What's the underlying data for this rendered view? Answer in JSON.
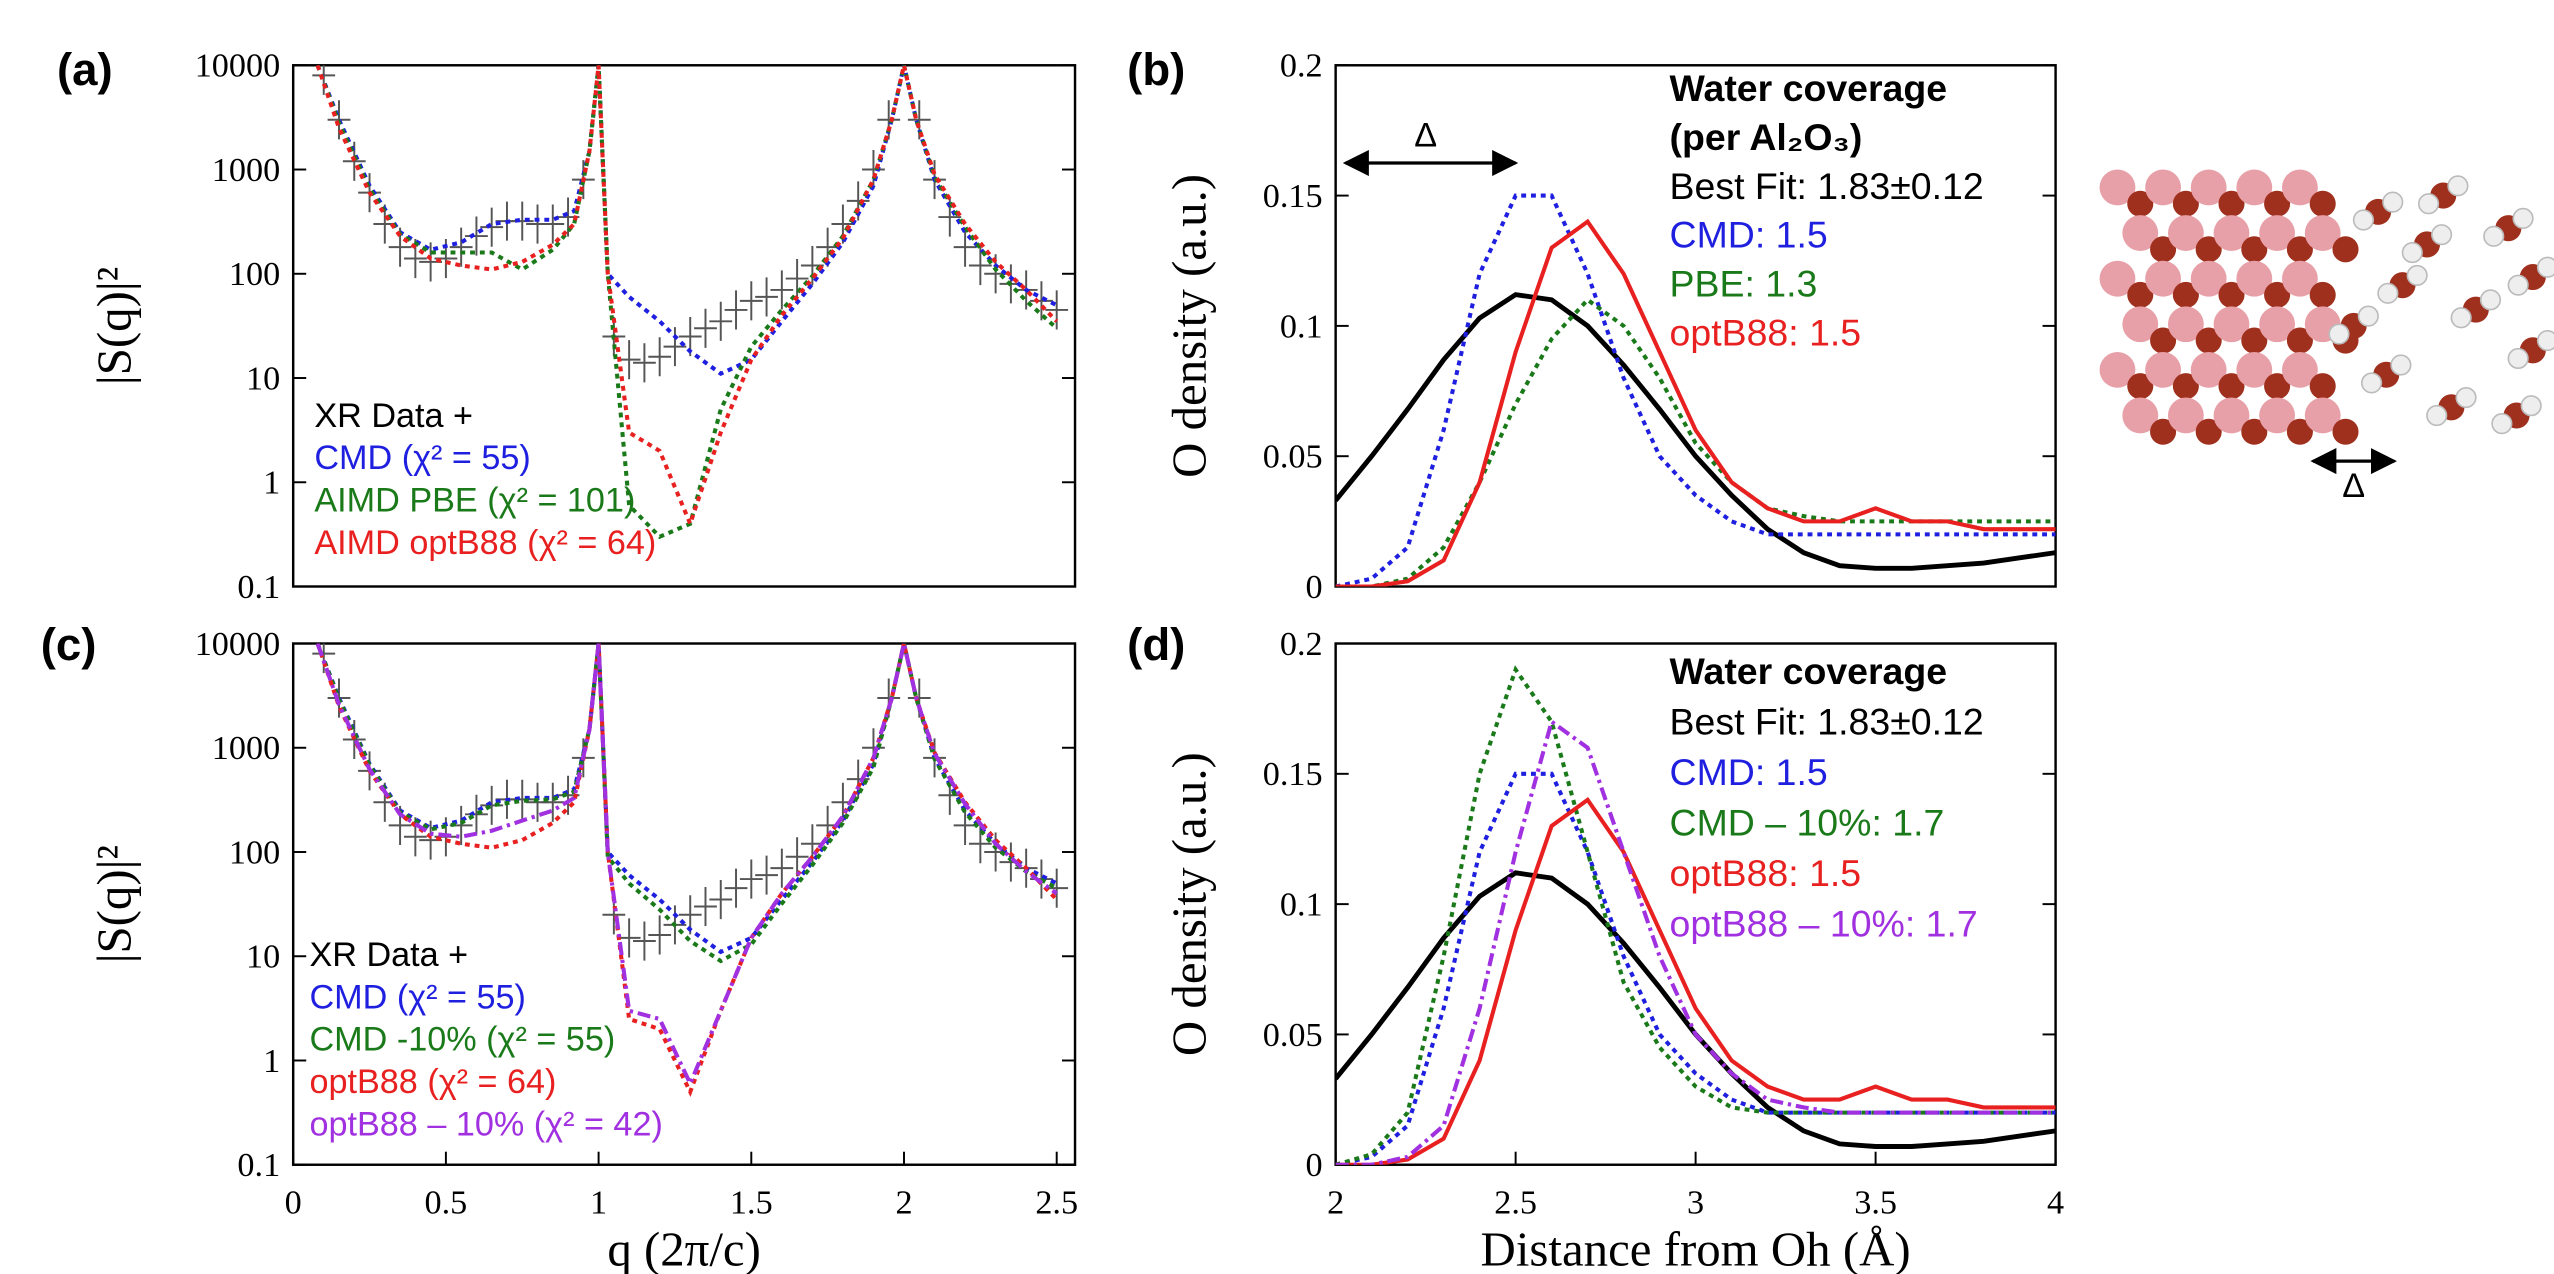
{
  "chart_data": [
    {
      "type": "line",
      "label": "(a)",
      "y_label": "|S(q)|²",
      "yscale": "log",
      "xlim": [
        0,
        2.56
      ],
      "ylim": [
        0.1,
        10000
      ],
      "yticks": [
        0.1,
        1,
        10,
        100,
        1000,
        10000
      ],
      "legend_title": [],
      "x": [
        0.08,
        0.15,
        0.25,
        0.35,
        0.45,
        0.55,
        0.65,
        0.75,
        0.85,
        0.92,
        0.97,
        1.0,
        1.03,
        1.1,
        1.2,
        1.3,
        1.4,
        1.5,
        1.6,
        1.7,
        1.8,
        1.9,
        1.96,
        2.0,
        2.04,
        2.1,
        2.2,
        2.3,
        2.4,
        2.5
      ],
      "series": [
        {
          "name": "XR Data +",
          "color": "#000000",
          "marker": "+",
          "x": [
            0.1,
            0.15,
            0.2,
            0.25,
            0.3,
            0.35,
            0.4,
            0.45,
            0.5,
            0.55,
            0.6,
            0.65,
            0.7,
            0.75,
            0.8,
            0.85,
            0.9,
            0.95,
            1.05,
            1.1,
            1.15,
            1.2,
            1.25,
            1.3,
            1.35,
            1.4,
            1.45,
            1.5,
            1.55,
            1.6,
            1.65,
            1.7,
            1.75,
            1.8,
            1.85,
            1.9,
            1.95,
            2.05,
            2.1,
            2.15,
            2.2,
            2.25,
            2.3,
            2.35,
            2.4,
            2.45,
            2.5
          ],
          "values": [
            8000,
            3000,
            1200,
            600,
            300,
            180,
            140,
            130,
            140,
            180,
            230,
            280,
            320,
            320,
            300,
            300,
            350,
            800,
            25,
            15,
            14,
            16,
            20,
            25,
            30,
            35,
            45,
            55,
            60,
            70,
            90,
            120,
            180,
            300,
            500,
            1000,
            3000,
            3000,
            800,
            350,
            180,
            120,
            100,
            80,
            70,
            55,
            45
          ]
        },
        {
          "name": "CMD (χ² = 55)",
          "color": "#1f1fe0",
          "style": "dotted",
          "values": [
            10000,
            3000,
            700,
            250,
            170,
            200,
            300,
            330,
            330,
            400,
            1500,
            10000,
            100,
            60,
            35,
            18,
            11,
            15,
            35,
            80,
            200,
            700,
            3000,
            10000,
            3000,
            800,
            250,
            120,
            70,
            50
          ]
        },
        {
          "name": "AIMD PBE (χ² = 101)",
          "color": "#1a7a1a",
          "style": "dotted",
          "values": [
            10000,
            2800,
            650,
            240,
            160,
            160,
            160,
            110,
            170,
            300,
            1500,
            10000,
            100,
            0.6,
            0.3,
            0.4,
            5,
            20,
            45,
            95,
            230,
            800,
            3000,
            10000,
            3000,
            850,
            280,
            110,
            55,
            30
          ]
        },
        {
          "name": "AIMD optB88 (χ² = 64)",
          "color": "#e82020",
          "style": "dotted",
          "values": [
            10000,
            2500,
            600,
            230,
            140,
            120,
            110,
            130,
            190,
            300,
            1500,
            10000,
            100,
            3,
            2,
            0.4,
            3,
            15,
            40,
            90,
            220,
            800,
            3000,
            10000,
            3000,
            900,
            300,
            130,
            70,
            35
          ]
        }
      ]
    },
    {
      "type": "line",
      "label": "(b)",
      "y_label": "O density (a.u.)",
      "yscale": "linear",
      "xlim": [
        2,
        4
      ],
      "ylim": [
        0,
        0.2
      ],
      "yticks": [
        0,
        0.05,
        0.1,
        0.15,
        0.2
      ],
      "legend_title": [
        "Water coverage",
        "(per Al₂O₃)"
      ],
      "annotation": "Δ",
      "x": [
        2.0,
        2.1,
        2.2,
        2.3,
        2.4,
        2.5,
        2.6,
        2.7,
        2.8,
        2.9,
        3.0,
        3.1,
        3.2,
        3.3,
        3.4,
        3.5,
        3.6,
        3.7,
        3.8,
        3.9,
        4.0
      ],
      "series": [
        {
          "name": "Best Fit: 1.83±0.12",
          "color": "#000000",
          "style": "solid",
          "values": [
            0.033,
            0.05,
            0.068,
            0.087,
            0.103,
            0.112,
            0.11,
            0.1,
            0.085,
            0.068,
            0.05,
            0.035,
            0.022,
            0.013,
            0.008,
            0.007,
            0.007,
            0.008,
            0.009,
            0.011,
            0.013
          ]
        },
        {
          "name": "CMD: 1.5",
          "color": "#1f1fe0",
          "style": "dotted",
          "values": [
            0,
            0.003,
            0.015,
            0.06,
            0.12,
            0.15,
            0.15,
            0.12,
            0.08,
            0.05,
            0.035,
            0.025,
            0.02,
            0.02,
            0.02,
            0.02,
            0.02,
            0.02,
            0.02,
            0.02,
            0.02
          ]
        },
        {
          "name": "PBE: 1.3",
          "color": "#1a7a1a",
          "style": "dotted",
          "values": [
            0,
            0,
            0.003,
            0.015,
            0.04,
            0.07,
            0.095,
            0.11,
            0.1,
            0.08,
            0.055,
            0.04,
            0.03,
            0.027,
            0.025,
            0.025,
            0.025,
            0.025,
            0.025,
            0.025,
            0.025
          ]
        },
        {
          "name": "optB88: 1.5",
          "color": "#e82020",
          "style": "solid",
          "values": [
            0,
            0,
            0.002,
            0.01,
            0.04,
            0.09,
            0.13,
            0.14,
            0.12,
            0.09,
            0.06,
            0.04,
            0.03,
            0.025,
            0.025,
            0.03,
            0.025,
            0.025,
            0.022,
            0.022,
            0.022
          ]
        }
      ]
    },
    {
      "type": "line",
      "label": "(c)",
      "y_label": "|S(q)|²",
      "x_label": "q (2π/c)",
      "yscale": "log",
      "xlim": [
        0,
        2.56
      ],
      "ylim": [
        0.1,
        10000
      ],
      "yticks": [
        0.1,
        1,
        10,
        100,
        1000,
        10000
      ],
      "xticks": [
        0,
        0.5,
        1,
        1.5,
        2,
        2.5
      ],
      "legend_title": [],
      "x": [
        0.08,
        0.15,
        0.25,
        0.35,
        0.45,
        0.55,
        0.65,
        0.75,
        0.85,
        0.92,
        0.97,
        1.0,
        1.03,
        1.1,
        1.2,
        1.3,
        1.4,
        1.5,
        1.6,
        1.7,
        1.8,
        1.9,
        1.96,
        2.0,
        2.04,
        2.1,
        2.2,
        2.3,
        2.4,
        2.5
      ],
      "series": [
        {
          "name": "XR Data +",
          "color": "#000000",
          "marker": "+",
          "x": [
            0.1,
            0.15,
            0.2,
            0.25,
            0.3,
            0.35,
            0.4,
            0.45,
            0.5,
            0.55,
            0.6,
            0.65,
            0.7,
            0.75,
            0.8,
            0.85,
            0.9,
            0.95,
            1.05,
            1.1,
            1.15,
            1.2,
            1.25,
            1.3,
            1.35,
            1.4,
            1.45,
            1.5,
            1.55,
            1.6,
            1.65,
            1.7,
            1.75,
            1.8,
            1.85,
            1.9,
            1.95,
            2.05,
            2.1,
            2.15,
            2.2,
            2.25,
            2.3,
            2.35,
            2.4,
            2.45,
            2.5
          ],
          "values": [
            8000,
            3000,
            1200,
            600,
            300,
            180,
            140,
            130,
            140,
            180,
            230,
            280,
            320,
            320,
            300,
            300,
            350,
            800,
            25,
            15,
            14,
            16,
            20,
            25,
            30,
            35,
            45,
            55,
            60,
            70,
            90,
            120,
            180,
            300,
            500,
            1000,
            3000,
            3000,
            800,
            350,
            180,
            120,
            100,
            80,
            70,
            55,
            45
          ]
        },
        {
          "name": "CMD (χ² = 55)",
          "color": "#1f1fe0",
          "style": "dotted",
          "values": [
            10000,
            3000,
            700,
            250,
            170,
            200,
            300,
            330,
            330,
            400,
            1500,
            10000,
            100,
            60,
            35,
            18,
            11,
            15,
            35,
            80,
            200,
            700,
            3000,
            10000,
            3000,
            800,
            250,
            120,
            70,
            50
          ]
        },
        {
          "name": "CMD -10% (χ² = 55)",
          "color": "#1a7a1a",
          "style": "dotted",
          "values": [
            10000,
            2900,
            680,
            240,
            165,
            190,
            280,
            310,
            320,
            380,
            1500,
            10000,
            90,
            50,
            28,
            14,
            9,
            13,
            32,
            75,
            190,
            650,
            3000,
            10000,
            3000,
            780,
            240,
            110,
            65,
            45
          ]
        },
        {
          "name": "optB88 (χ² = 64)",
          "color": "#e82020",
          "style": "dotted",
          "values": [
            10000,
            2500,
            600,
            230,
            140,
            120,
            110,
            130,
            190,
            300,
            1500,
            10000,
            100,
            2.5,
            2,
            0.5,
            3,
            15,
            40,
            90,
            220,
            800,
            3000,
            10000,
            3000,
            900,
            300,
            130,
            70,
            35
          ]
        },
        {
          "name": "optB88 – 10% (χ² = 42)",
          "color": "#a030e0",
          "style": "dashdot",
          "values": [
            10000,
            2600,
            620,
            230,
            150,
            140,
            160,
            200,
            250,
            330,
            1500,
            10000,
            100,
            3,
            2.5,
            0.6,
            3,
            15,
            40,
            90,
            220,
            800,
            3000,
            10000,
            3000,
            880,
            290,
            120,
            65,
            40
          ]
        }
      ]
    },
    {
      "type": "line",
      "label": "(d)",
      "y_label": "O density (a.u.)",
      "x_label": "Distance from Oh (Å)",
      "yscale": "linear",
      "xlim": [
        2,
        4
      ],
      "ylim": [
        0,
        0.2
      ],
      "yticks": [
        0,
        0.05,
        0.1,
        0.15,
        0.2
      ],
      "xticks": [
        2,
        2.5,
        3,
        3.5,
        4
      ],
      "legend_title": [
        "Water coverage"
      ],
      "x": [
        2.0,
        2.1,
        2.2,
        2.3,
        2.4,
        2.5,
        2.6,
        2.7,
        2.8,
        2.9,
        3.0,
        3.1,
        3.2,
        3.3,
        3.4,
        3.5,
        3.6,
        3.7,
        3.8,
        3.9,
        4.0
      ],
      "series": [
        {
          "name": "Best Fit: 1.83±0.12",
          "color": "#000000",
          "style": "solid",
          "values": [
            0.033,
            0.05,
            0.068,
            0.087,
            0.103,
            0.112,
            0.11,
            0.1,
            0.085,
            0.068,
            0.05,
            0.035,
            0.022,
            0.013,
            0.008,
            0.007,
            0.007,
            0.008,
            0.009,
            0.011,
            0.013
          ]
        },
        {
          "name": "CMD: 1.5",
          "color": "#1f1fe0",
          "style": "dotted",
          "values": [
            0,
            0.003,
            0.015,
            0.06,
            0.12,
            0.15,
            0.15,
            0.12,
            0.08,
            0.05,
            0.035,
            0.025,
            0.02,
            0.02,
            0.02,
            0.02,
            0.02,
            0.02,
            0.02,
            0.02,
            0.02
          ]
        },
        {
          "name": "CMD – 10%: 1.7",
          "color": "#1a7a1a",
          "style": "dotted",
          "values": [
            0,
            0.004,
            0.02,
            0.08,
            0.15,
            0.19,
            0.17,
            0.12,
            0.07,
            0.045,
            0.03,
            0.022,
            0.02,
            0.02,
            0.02,
            0.02,
            0.02,
            0.02,
            0.02,
            0.02,
            0.02
          ]
        },
        {
          "name": "optB88: 1.5",
          "color": "#e82020",
          "style": "solid",
          "values": [
            0,
            0,
            0.002,
            0.01,
            0.04,
            0.09,
            0.13,
            0.14,
            0.12,
            0.09,
            0.06,
            0.04,
            0.03,
            0.025,
            0.025,
            0.03,
            0.025,
            0.025,
            0.022,
            0.022,
            0.022
          ]
        },
        {
          "name": "optB88 – 10%: 1.7",
          "color": "#a030e0",
          "style": "dashdot",
          "values": [
            0,
            0,
            0.003,
            0.015,
            0.06,
            0.12,
            0.17,
            0.16,
            0.12,
            0.08,
            0.05,
            0.035,
            0.025,
            0.022,
            0.02,
            0.02,
            0.02,
            0.02,
            0.02,
            0.02,
            0.02
          ]
        }
      ]
    }
  ],
  "image_annotation": "Δ"
}
